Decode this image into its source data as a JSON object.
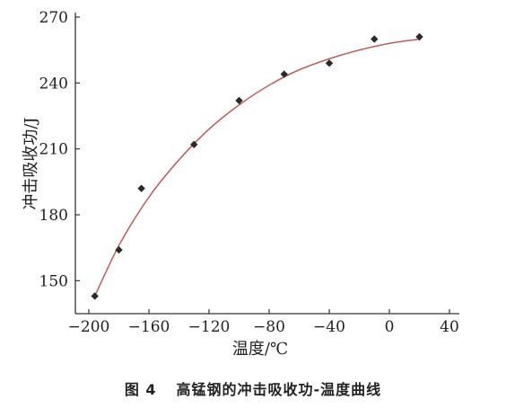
{
  "caption": {
    "figure_label": "图 4",
    "text": "高锰钢的冲击吸收功-温度曲线"
  },
  "colors": {
    "curve": "#c0504d",
    "marker": "#2a2a2a",
    "axis": "#333333"
  },
  "chart_data": {
    "type": "scatter",
    "title": "",
    "xlabel": "温度/℃",
    "ylabel": "冲击吸收功/J",
    "xlim": [
      -200,
      40
    ],
    "ylim": [
      135,
      270
    ],
    "xticks": [
      -200,
      -160,
      -120,
      -80,
      -40,
      0,
      40
    ],
    "yticks": [
      150,
      180,
      210,
      240,
      270
    ],
    "xtick_labels": [
      "−200",
      "−160",
      "−120",
      "−80",
      "−40",
      "0",
      "40"
    ],
    "ytick_labels": [
      "150",
      "180",
      "210",
      "240",
      "270"
    ],
    "grid": false,
    "marker": "diamond",
    "points": [
      {
        "x": -196,
        "y": 143
      },
      {
        "x": -180,
        "y": 164
      },
      {
        "x": -165,
        "y": 192
      },
      {
        "x": -130,
        "y": 212
      },
      {
        "x": -100,
        "y": 232
      },
      {
        "x": -70,
        "y": 244
      },
      {
        "x": -40,
        "y": 249
      },
      {
        "x": -10,
        "y": 260
      },
      {
        "x": 20,
        "y": 261
      }
    ],
    "fit_curve": {
      "x": [
        -196,
        -180,
        -160,
        -140,
        -120,
        -100,
        -80,
        -60,
        -40,
        -20,
        0,
        20
      ],
      "y": [
        143,
        166,
        188,
        205,
        219,
        230,
        239,
        246,
        251,
        255,
        258,
        260
      ]
    }
  }
}
